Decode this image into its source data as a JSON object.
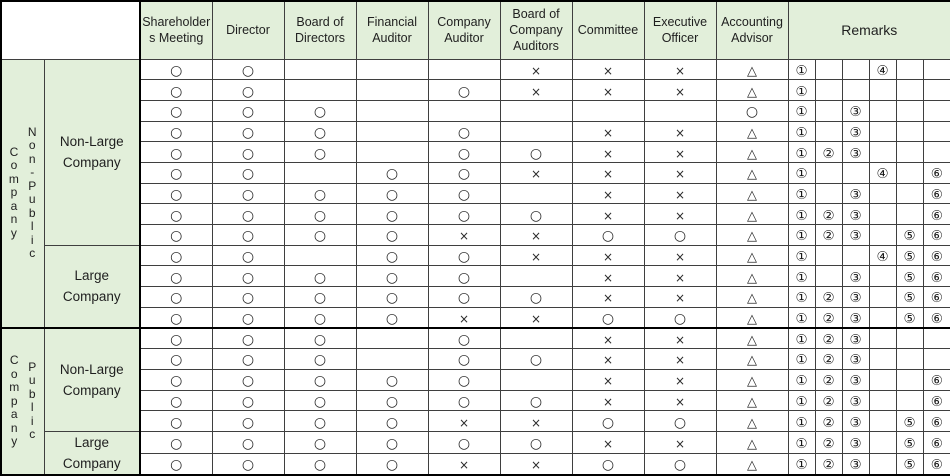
{
  "palette": {
    "header_bg": "#e2efda",
    "grid_line": "#3f3f3f",
    "frame_line": "#000000",
    "text": "#1f1f1f"
  },
  "header": {
    "columns": [
      "Shareholders Meeting",
      "Director",
      "Board of Directors",
      "Financial Auditor",
      "Company Auditor",
      "Board of Company Auditors",
      "Committee",
      "Executive Officer",
      "Accounting Advisor"
    ],
    "remarks_label": "Remarks"
  },
  "symbols": {
    "circle": "○",
    "cross": "×",
    "triangle": "△",
    "remark_numbers": [
      "①",
      "②",
      "③",
      "④",
      "⑤",
      "⑥"
    ]
  },
  "sections": [
    {
      "company_label": "Company",
      "type_label": "Non-Public",
      "groups": [
        {
          "size_label": "Non-Large Company",
          "rows": [
            {
              "cells": [
                "○",
                "○",
                "",
                "",
                "",
                "×",
                "×",
                "×",
                "△"
              ],
              "remarks": [
                "①",
                "",
                "",
                "④",
                "",
                ""
              ]
            },
            {
              "cells": [
                "○",
                "○",
                "",
                "",
                "○",
                "×",
                "×",
                "×",
                "△"
              ],
              "remarks": [
                "①",
                "",
                "",
                "",
                "",
                ""
              ]
            },
            {
              "cells": [
                "○",
                "○",
                "○",
                "",
                "",
                "",
                "",
                "",
                "○"
              ],
              "remarks": [
                "①",
                "",
                "③",
                "",
                "",
                ""
              ]
            },
            {
              "cells": [
                "○",
                "○",
                "○",
                "",
                "○",
                "",
                "×",
                "×",
                "△"
              ],
              "remarks": [
                "①",
                "",
                "③",
                "",
                "",
                ""
              ]
            },
            {
              "cells": [
                "○",
                "○",
                "○",
                "",
                "○",
                "○",
                "×",
                "×",
                "△"
              ],
              "remarks": [
                "①",
                "②",
                "③",
                "",
                "",
                ""
              ]
            },
            {
              "cells": [
                "○",
                "○",
                "",
                "○",
                "○",
                "×",
                "×",
                "×",
                "△"
              ],
              "remarks": [
                "①",
                "",
                "",
                "④",
                "",
                "⑥"
              ]
            },
            {
              "cells": [
                "○",
                "○",
                "○",
                "○",
                "○",
                "",
                "×",
                "×",
                "△"
              ],
              "remarks": [
                "①",
                "",
                "③",
                "",
                "",
                "⑥"
              ]
            },
            {
              "cells": [
                "○",
                "○",
                "○",
                "○",
                "○",
                "○",
                "×",
                "×",
                "△"
              ],
              "remarks": [
                "①",
                "②",
                "③",
                "",
                "",
                "⑥"
              ]
            },
            {
              "cells": [
                "○",
                "○",
                "○",
                "○",
                "×",
                "×",
                "○",
                "○",
                "△"
              ],
              "remarks": [
                "①",
                "②",
                "③",
                "",
                "⑤",
                "⑥"
              ]
            }
          ]
        },
        {
          "size_label": "Large Company",
          "rows": [
            {
              "cells": [
                "○",
                "○",
                "",
                "○",
                "○",
                "×",
                "×",
                "×",
                "△"
              ],
              "remarks": [
                "①",
                "",
                "",
                "④",
                "⑤",
                "⑥"
              ]
            },
            {
              "cells": [
                "○",
                "○",
                "○",
                "○",
                "○",
                "",
                "×",
                "×",
                "△"
              ],
              "remarks": [
                "①",
                "",
                "③",
                "",
                "⑤",
                "⑥"
              ]
            },
            {
              "cells": [
                "○",
                "○",
                "○",
                "○",
                "○",
                "○",
                "×",
                "×",
                "△"
              ],
              "remarks": [
                "①",
                "②",
                "③",
                "",
                "⑤",
                "⑥"
              ]
            },
            {
              "cells": [
                "○",
                "○",
                "○",
                "○",
                "×",
                "×",
                "○",
                "○",
                "△"
              ],
              "remarks": [
                "①",
                "②",
                "③",
                "",
                "⑤",
                "⑥"
              ]
            }
          ]
        }
      ]
    },
    {
      "company_label": "Company",
      "type_label": "Public",
      "groups": [
        {
          "size_label": "Non-Large Company",
          "rows": [
            {
              "cells": [
                "○",
                "○",
                "○",
                "",
                "○",
                "",
                "×",
                "×",
                "△"
              ],
              "remarks": [
                "①",
                "②",
                "③",
                "",
                "",
                ""
              ]
            },
            {
              "cells": [
                "○",
                "○",
                "○",
                "",
                "○",
                "○",
                "×",
                "×",
                "△"
              ],
              "remarks": [
                "①",
                "②",
                "③",
                "",
                "",
                ""
              ]
            },
            {
              "cells": [
                "○",
                "○",
                "○",
                "○",
                "○",
                "",
                "×",
                "×",
                "△"
              ],
              "remarks": [
                "①",
                "②",
                "③",
                "",
                "",
                "⑥"
              ]
            },
            {
              "cells": [
                "○",
                "○",
                "○",
                "○",
                "○",
                "○",
                "×",
                "×",
                "△"
              ],
              "remarks": [
                "①",
                "②",
                "③",
                "",
                "",
                "⑥"
              ]
            },
            {
              "cells": [
                "○",
                "○",
                "○",
                "○",
                "×",
                "×",
                "○",
                "○",
                "△"
              ],
              "remarks": [
                "①",
                "②",
                "③",
                "",
                "⑤",
                "⑥"
              ]
            }
          ]
        },
        {
          "size_label": "Large Company",
          "rows": [
            {
              "cells": [
                "○",
                "○",
                "○",
                "○",
                "○",
                "○",
                "×",
                "×",
                "△"
              ],
              "remarks": [
                "①",
                "②",
                "③",
                "",
                "⑤",
                "⑥"
              ]
            },
            {
              "cells": [
                "○",
                "○",
                "○",
                "○",
                "×",
                "×",
                "○",
                "○",
                "△"
              ],
              "remarks": [
                "①",
                "②",
                "③",
                "",
                "⑤",
                "⑥"
              ]
            }
          ]
        }
      ]
    }
  ]
}
